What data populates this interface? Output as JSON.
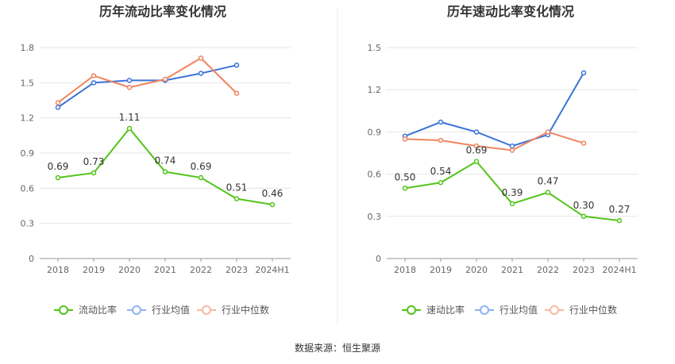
{
  "footer": {
    "source": "数据来源：恒生聚源"
  },
  "chart_data": [
    {
      "type": "line",
      "title": "历年流动比率变化情况",
      "categories": [
        "2018",
        "2019",
        "2020",
        "2021",
        "2022",
        "2023",
        "2024H1"
      ],
      "y_ticks": [
        "0",
        "0.3",
        "0.6",
        "0.9",
        "1.2",
        "1.5",
        "1.8"
      ],
      "ylim": [
        0,
        1.8
      ],
      "grid": true,
      "legend_position": "bottom",
      "series": [
        {
          "name": "流动比率",
          "color": "#52c41a",
          "values": [
            0.69,
            0.73,
            1.11,
            0.74,
            0.69,
            0.51,
            0.46
          ],
          "labels": [
            "0.69",
            "0.73",
            "1.11",
            "0.74",
            "0.69",
            "0.51",
            "0.46"
          ]
        },
        {
          "name": "行业均值",
          "color": "#3b73d9",
          "values": [
            1.29,
            1.5,
            1.52,
            1.52,
            1.58,
            1.65,
            null
          ]
        },
        {
          "name": "行业中位数",
          "color": "#f0845e",
          "values": [
            1.33,
            1.56,
            1.46,
            1.53,
            1.71,
            1.41,
            null
          ]
        }
      ]
    },
    {
      "type": "line",
      "title": "历年速动比率变化情况",
      "categories": [
        "2018",
        "2019",
        "2020",
        "2021",
        "2022",
        "2023",
        "2024H1"
      ],
      "y_ticks": [
        "0",
        "0.3",
        "0.6",
        "0.9",
        "1.2",
        "1.5"
      ],
      "ylim": [
        0,
        1.5
      ],
      "grid": true,
      "legend_position": "bottom",
      "series": [
        {
          "name": "速动比率",
          "color": "#52c41a",
          "values": [
            0.5,
            0.54,
            0.69,
            0.39,
            0.47,
            0.3,
            0.27
          ],
          "labels": [
            "0.50",
            "0.54",
            "0.69",
            "0.39",
            "0.47",
            "0.30",
            "0.27"
          ]
        },
        {
          "name": "行业均值",
          "color": "#3b73d9",
          "values": [
            0.87,
            0.97,
            0.9,
            0.8,
            0.88,
            1.32,
            null
          ]
        },
        {
          "name": "行业中位数",
          "color": "#f0845e",
          "values": [
            0.85,
            0.84,
            0.8,
            0.77,
            0.9,
            0.82,
            null
          ]
        }
      ]
    }
  ]
}
